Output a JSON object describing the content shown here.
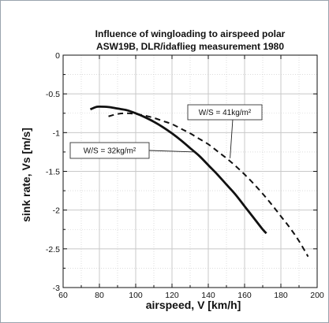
{
  "chart_data": {
    "type": "line",
    "title": [
      "Influence of wingloading to airspeed polar",
      "ASW19B, DLR/idaflieg measurement 1980"
    ],
    "xlabel": "airspeed, V [km/h]",
    "ylabel": "sink rate, Vs [m/s]",
    "xlim": [
      60,
      200
    ],
    "ylim": [
      -3,
      0
    ],
    "xticks": [
      60,
      80,
      100,
      120,
      140,
      160,
      180,
      200
    ],
    "yticks": [
      0,
      -0.5,
      -1,
      -1.5,
      -2,
      -2.5,
      -3
    ],
    "xtick_labels": [
      "60",
      "80",
      "100",
      "120",
      "140",
      "160",
      "180",
      "200"
    ],
    "ytick_labels": [
      "0",
      "-0.5",
      "-1",
      "-1.5",
      "-2",
      "-2.5",
      "-3"
    ],
    "grid": true,
    "legend": "none",
    "series": [
      {
        "label": "W/S = 32kg/m²",
        "style": "solid",
        "x": [
          75,
          78,
          80,
          85,
          90,
          95,
          100,
          105,
          110,
          115,
          120,
          125,
          130,
          135,
          140,
          145,
          150,
          155,
          160,
          165,
          170,
          172
        ],
        "y": [
          -0.7,
          -0.67,
          -0.665,
          -0.67,
          -0.69,
          -0.71,
          -0.75,
          -0.8,
          -0.86,
          -0.93,
          -1.01,
          -1.1,
          -1.2,
          -1.3,
          -1.42,
          -1.54,
          -1.67,
          -1.8,
          -1.95,
          -2.1,
          -2.25,
          -2.3
        ]
      },
      {
        "label": "W/S = 41kg/m²",
        "style": "dashed",
        "x": [
          85,
          90,
          95,
          100,
          105,
          110,
          115,
          120,
          125,
          130,
          135,
          140,
          145,
          150,
          155,
          160,
          165,
          170,
          175,
          180,
          185,
          190,
          195
        ],
        "y": [
          -0.79,
          -0.76,
          -0.75,
          -0.76,
          -0.78,
          -0.81,
          -0.85,
          -0.89,
          -0.95,
          -1.01,
          -1.08,
          -1.15,
          -1.24,
          -1.33,
          -1.43,
          -1.54,
          -1.66,
          -1.79,
          -1.93,
          -2.08,
          -2.23,
          -2.4,
          -2.6
        ]
      }
    ],
    "annotations": [
      {
        "text": "W/S = 41kg/m²",
        "series": 1,
        "target": [
          152,
          -1.33
        ]
      },
      {
        "text": "W/S = 32kg/m²",
        "series": 0,
        "target": [
          133,
          -1.25
        ]
      }
    ],
    "colors": {
      "line": "#111111",
      "grid": "#c8c8c8",
      "frame": "#9aa3ad"
    }
  }
}
